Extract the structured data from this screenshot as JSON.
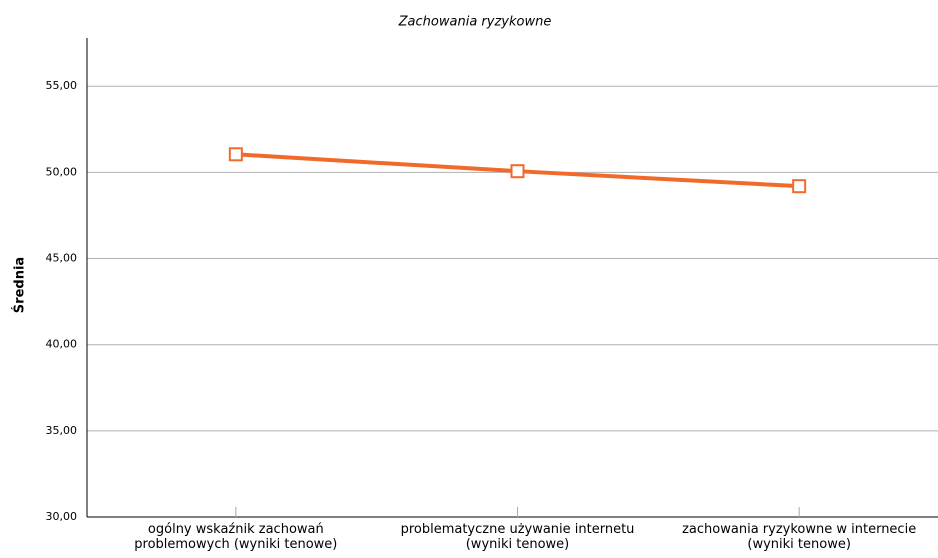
{
  "chart_data": {
    "type": "line",
    "title": "Zachowania ryzykowne",
    "y_label": "Średnia",
    "categories": [
      "ogólny wskaźnik zachowań\nproblemowych (wyniki tenowe)",
      "problematyczne używanie internetu\n(wyniki tenowe)",
      "zachowania ryzykowne w internecie\n(wyniki tenowe)"
    ],
    "series": [
      {
        "name": "Zachowania ryzykowne",
        "color": "#f26a2b",
        "values": [
          51.05,
          50.07,
          49.2
        ]
      }
    ],
    "ylim": [
      30,
      57.8
    ],
    "yticks": [
      {
        "value": 30,
        "label": "30,00"
      },
      {
        "value": 35,
        "label": "35,00"
      },
      {
        "value": 40,
        "label": "40,00"
      },
      {
        "value": 45,
        "label": "45,00"
      },
      {
        "value": 50,
        "label": "50,00"
      },
      {
        "value": 55,
        "label": "55,00"
      }
    ],
    "grid": true
  }
}
